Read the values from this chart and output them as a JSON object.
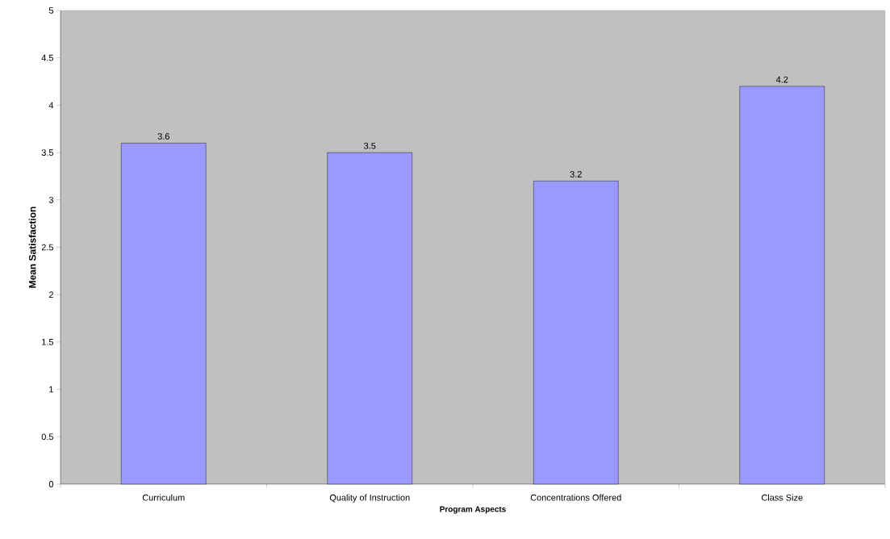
{
  "chart_data": {
    "type": "bar",
    "xlabel": "Program Aspects",
    "ylabel": "Mean Satisfaction",
    "categories": [
      "Curriculum",
      "Quality of Instruction",
      "Concentrations Offered",
      "Class Size"
    ],
    "values": [
      3.6,
      3.5,
      3.2,
      4.2
    ],
    "color": "#9999ff",
    "ylim": [
      0,
      5
    ],
    "yticks": [
      0,
      0.5,
      1,
      1.5,
      2,
      2.5,
      3,
      3.5,
      4,
      4.5,
      5
    ],
    "data_labels": true
  }
}
